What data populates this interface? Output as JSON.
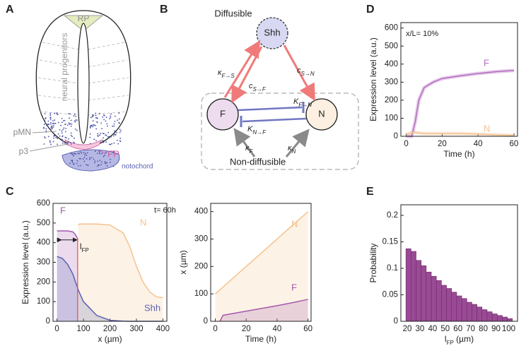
{
  "panel_labels": [
    "A",
    "B",
    "C",
    "D",
    "E"
  ],
  "diagram_a": {
    "rp": "RP",
    "progenitors": "neural progenitors",
    "pmn": "pMN",
    "p3": "p3",
    "fp": "FP",
    "notochord": "notochord"
  },
  "diagram_b": {
    "diffusible": "Diffusible",
    "non_diffusible": "Non-diffusible",
    "nodes": [
      {
        "label": "Shh"
      },
      {
        "label": "F"
      },
      {
        "label": "N"
      }
    ],
    "edges": [
      {
        "sym": "κ",
        "sub": "F→S"
      },
      {
        "sym": "c",
        "sub": "S→F"
      },
      {
        "sym": "c",
        "sub": "S→N"
      },
      {
        "sym": "K",
        "sub": "F→N"
      },
      {
        "sym": "K",
        "sub": "N→F"
      },
      {
        "sym": "κ",
        "sub": "F"
      },
      {
        "sym": "κ",
        "sub": "N"
      }
    ]
  },
  "chart_data": [
    {
      "type": "line",
      "fill": true,
      "annotations": [
        "t= 60h"
      ],
      "marker_label": {
        "text": "l",
        "sub": "FP"
      },
      "xlabel": "x (µm)",
      "ylabel": "Expression level (a.u.)",
      "x": [
        0,
        20,
        40,
        60,
        70,
        78,
        80,
        85,
        100,
        150,
        200,
        250,
        275,
        300,
        325,
        350,
        375,
        400
      ],
      "series": [
        {
          "name": "F",
          "color": "#a45aad",
          "values": [
            460,
            460,
            460,
            455,
            440,
            420,
            null,
            null,
            null,
            null,
            null,
            null,
            null,
            null,
            null,
            null,
            null,
            null
          ]
        },
        {
          "name": "N",
          "color": "#f4c28f",
          "values": [
            null,
            null,
            null,
            null,
            null,
            null,
            490,
            495,
            495,
            495,
            490,
            450,
            380,
            280,
            200,
            150,
            125,
            120
          ]
        },
        {
          "name": "Shh",
          "color": "#5b62b3",
          "values": [
            330,
            320,
            290,
            240,
            200,
            170,
            160,
            145,
            100,
            30,
            5,
            1,
            0,
            0,
            0,
            0,
            0,
            0
          ]
        }
      ],
      "xlim": [
        -15,
        415
      ],
      "xticks": [
        0,
        100,
        200,
        300,
        400
      ],
      "ylim": [
        0,
        600
      ],
      "yticks": [
        0,
        100,
        200,
        300,
        400,
        500,
        600
      ]
    },
    {
      "type": "line",
      "fill": true,
      "xlabel": "Time (h)",
      "ylabel": "x (µm)",
      "x": [
        0,
        3,
        5,
        10,
        20,
        30,
        40,
        50,
        60
      ],
      "series": [
        {
          "name": "N",
          "color": "#f4c28f",
          "values": [
            100,
            115,
            125,
            150,
            200,
            250,
            300,
            350,
            400
          ]
        },
        {
          "name": "F",
          "color": "#a45aad",
          "values": [
            null,
            0,
            22,
            27,
            37,
            47,
            57,
            68,
            80
          ]
        }
      ],
      "xlim": [
        -3,
        62
      ],
      "xticks": [
        0,
        20,
        40,
        60
      ],
      "ylim": [
        0,
        430
      ],
      "yticks": [
        0,
        100,
        200,
        300,
        400
      ]
    },
    {
      "type": "line",
      "fill": false,
      "annotations": [
        "x/L= 10%"
      ],
      "xlabel": "Time (h)",
      "ylabel": "Expression level (a.u.)",
      "x": [
        0,
        3,
        5,
        7,
        10,
        15,
        20,
        30,
        40,
        50,
        60
      ],
      "series": [
        {
          "name": "F",
          "color": "#b46cc0",
          "values": [
            0,
            0,
            80,
            200,
            270,
            300,
            320,
            335,
            348,
            358,
            365
          ]
        },
        {
          "name": "N",
          "color": "#f4c28f",
          "values": [
            10,
            20,
            22,
            18,
            15,
            15,
            15,
            15,
            12,
            8,
            5
          ]
        }
      ],
      "xlim": [
        -3,
        62
      ],
      "xticks": [
        0,
        20,
        40,
        60
      ],
      "ylim": [
        0,
        630
      ],
      "yticks": [
        0,
        100,
        200,
        300,
        400,
        500,
        600
      ]
    },
    {
      "type": "histogram",
      "color": "#9a4a94",
      "xlabel": {
        "text": "l",
        "sub": "FP",
        "unit": " (µm)"
      },
      "ylabel": "Probability",
      "bins": [
        19,
        23,
        27,
        31,
        35,
        39,
        43,
        47,
        51,
        55,
        59,
        63,
        67,
        71,
        75,
        79,
        83,
        87,
        91,
        95,
        99,
        103
      ],
      "values": [
        0.137,
        0.132,
        0.115,
        0.105,
        0.093,
        0.085,
        0.077,
        0.068,
        0.062,
        0.055,
        0.048,
        0.043,
        0.036,
        0.032,
        0.027,
        0.022,
        0.018,
        0.014,
        0.011,
        0.008,
        0.005
      ],
      "xlim": [
        15,
        107
      ],
      "xticks": [
        20,
        30,
        40,
        50,
        60,
        70,
        80,
        90,
        100
      ],
      "ylim": [
        0,
        0.22
      ],
      "yticks": [
        0,
        0.05,
        0.1,
        0.15,
        0.2
      ]
    }
  ]
}
